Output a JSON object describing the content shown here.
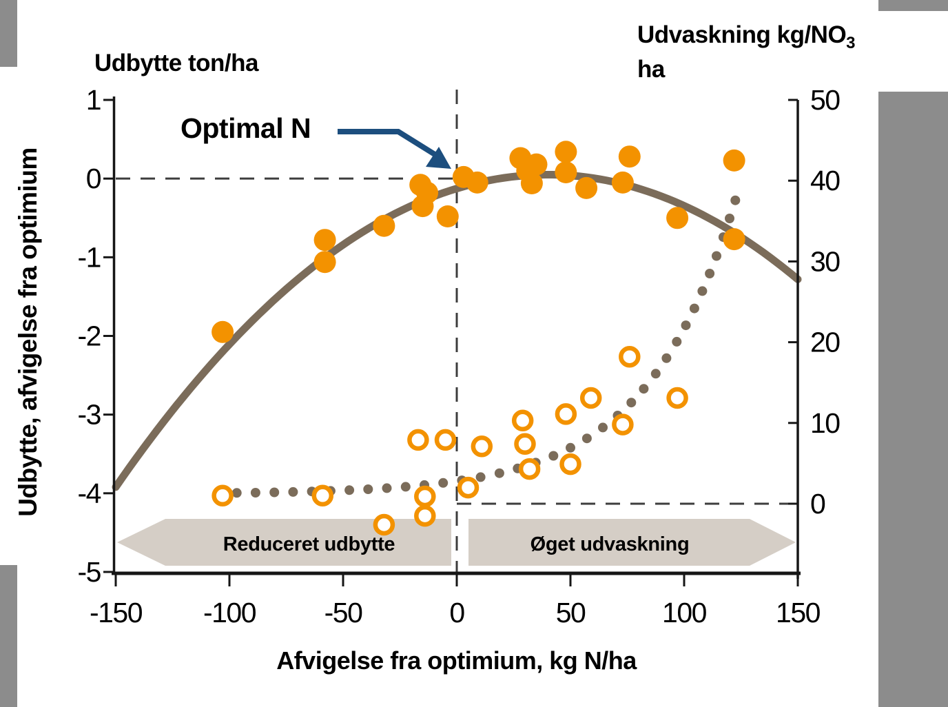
{
  "titles": {
    "left_top": "Udbytte ton/ha",
    "right_top_main": "Udvaskning kg/NO",
    "right_top_sub": "3",
    "right_top_line2": "ha",
    "y_axis": "Udbytte, afvigelse fra optimium",
    "x_axis": "Afvigelse fra optimium, kg N/ha"
  },
  "annotation": {
    "optimal_n": "Optimal N"
  },
  "bands": {
    "left_label": "Reduceret udbytte",
    "right_label": "Øget udvaskning",
    "fill": "#d5cec6"
  },
  "colors": {
    "orange": "#f39200",
    "brown": "#7b6c5a",
    "navy_arrow": "#1c4e7e",
    "dash": "#3d3d3d",
    "axis": "#161616",
    "side_strip": "#8c8c8c"
  },
  "chart_data": {
    "type": "scatter",
    "title": "Optimal N — udbytte og udvaskning",
    "x_axis": {
      "label": "Afvigelse fra optimium, kg N/ha",
      "range": [
        -150,
        150
      ],
      "ticks": [
        -150,
        -100,
        -50,
        0,
        50,
        100,
        150
      ]
    },
    "y_left_axis": {
      "title": "Udbytte ton/ha",
      "label": "Udbytte, afvigelse fra optimium",
      "range": [
        1,
        -5
      ],
      "ticks": [
        1,
        0,
        -1,
        -2,
        -3,
        -4,
        -5
      ]
    },
    "y_right_axis": {
      "title": "Udvaskning kg/NO3 ha",
      "range": [
        50,
        -3
      ],
      "ticks": [
        50,
        40,
        30,
        20,
        10,
        0
      ]
    },
    "grid": false,
    "legend": "none",
    "series": [
      {
        "name": "yield-points",
        "axis": "left",
        "marker": "filled-circle",
        "color": "#f39200",
        "points": [
          [
            -103,
            -1.95
          ],
          [
            -58,
            -0.78
          ],
          [
            -58,
            -1.06
          ],
          [
            -32,
            -0.6
          ],
          [
            -16,
            -0.08
          ],
          [
            -15,
            -0.35
          ],
          [
            -13,
            -0.18
          ],
          [
            -4,
            -0.48
          ],
          [
            3,
            0.02
          ],
          [
            9,
            -0.05
          ],
          [
            28,
            0.26
          ],
          [
            31,
            0.1
          ],
          [
            33,
            -0.06
          ],
          [
            35,
            0.18
          ],
          [
            48,
            0.34
          ],
          [
            48,
            0.08
          ],
          [
            57,
            -0.12
          ],
          [
            73,
            -0.05
          ],
          [
            76,
            0.28
          ],
          [
            97,
            -0.5
          ],
          [
            122,
            0.23
          ],
          [
            122,
            -0.77
          ]
        ]
      },
      {
        "name": "leaching-points",
        "axis": "right",
        "marker": "open-circle",
        "color": "#f39200",
        "points": [
          [
            -103,
            1.0
          ],
          [
            -59,
            1.0
          ],
          [
            -32,
            -2.6
          ],
          [
            -17,
            7.9
          ],
          [
            -14,
            0.9
          ],
          [
            -14,
            -1.5
          ],
          [
            -5,
            7.9
          ],
          [
            5,
            2.0
          ],
          [
            11,
            7.1
          ],
          [
            29,
            10.3
          ],
          [
            30,
            7.4
          ],
          [
            32,
            4.3
          ],
          [
            48,
            11.1
          ],
          [
            50,
            4.9
          ],
          [
            59,
            13.1
          ],
          [
            73,
            9.8
          ],
          [
            76,
            18.2
          ],
          [
            97,
            13.1
          ]
        ]
      },
      {
        "name": "yield-curve",
        "axis": "left",
        "style": "solid",
        "color": "#7b6c5a",
        "curve": {
          "kind": "quadratic",
          "peak_x": 40,
          "peak_y": 0.05,
          "a": -0.00011,
          "x_range": [
            -150,
            150
          ]
        }
      },
      {
        "name": "leaching-curve",
        "axis": "right",
        "style": "dotted",
        "color": "#7b6c5a",
        "curve": {
          "kind": "exponential",
          "a": 1.6,
          "b": 0.0255,
          "c": 1.2,
          "x_range": [
            -105,
            124
          ]
        }
      }
    ],
    "reference_lines": [
      {
        "name": "yield-zero-dashed",
        "orientation": "horizontal",
        "axis": "left",
        "value": 0,
        "from_x": -150,
        "to_x": 0
      },
      {
        "name": "optimum-vertical-dashed",
        "orientation": "vertical",
        "value": 0
      },
      {
        "name": "leaching-zero-dashed",
        "orientation": "horizontal",
        "axis": "right",
        "value": 0,
        "from_x": 0,
        "to_x": 150
      }
    ]
  }
}
